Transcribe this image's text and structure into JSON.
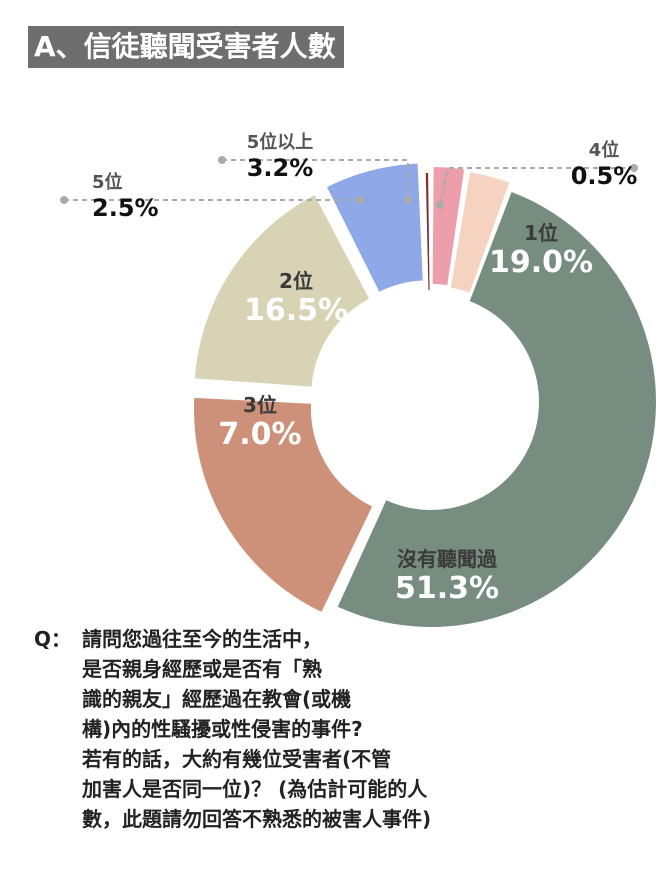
{
  "header": {
    "title": "A、信徒聽聞受害者人數"
  },
  "chart_data": {
    "type": "pie",
    "categories": [
      "沒有聽聞過",
      "1位",
      "2位",
      "3位",
      "4位",
      "5位",
      "5位以上"
    ],
    "values": [
      51.3,
      19.0,
      16.5,
      7.0,
      0.5,
      2.5,
      3.2
    ],
    "value_labels": [
      "51.3%",
      "19.0%",
      "16.5%",
      "7.0%",
      "0.5%",
      "2.5%",
      "3.2%"
    ],
    "colors": {
      "沒有聽聞過": "#778d80",
      "1位": "#cd9179",
      "2位": "#d9d3b6",
      "3位": "#8fa9e8",
      "4位": "#7f2f34",
      "5位": "#ec9eac",
      "5位以上": "#f6d3c1"
    },
    "legend": "none"
  },
  "question": {
    "label": "Q：",
    "lines": [
      "請問您過往至今的生活中，",
      "是否親身經歷或是否有「熟",
      "識的親友」經歷過在教會(或機",
      "構)內的性騷擾或性侵害的事件?",
      "若有的話，大約有幾位受害者(不管",
      "加害人是否同一位)？ (為估計可能的人",
      "數，此題請勿回答不熟悉的被害人事件)"
    ]
  }
}
